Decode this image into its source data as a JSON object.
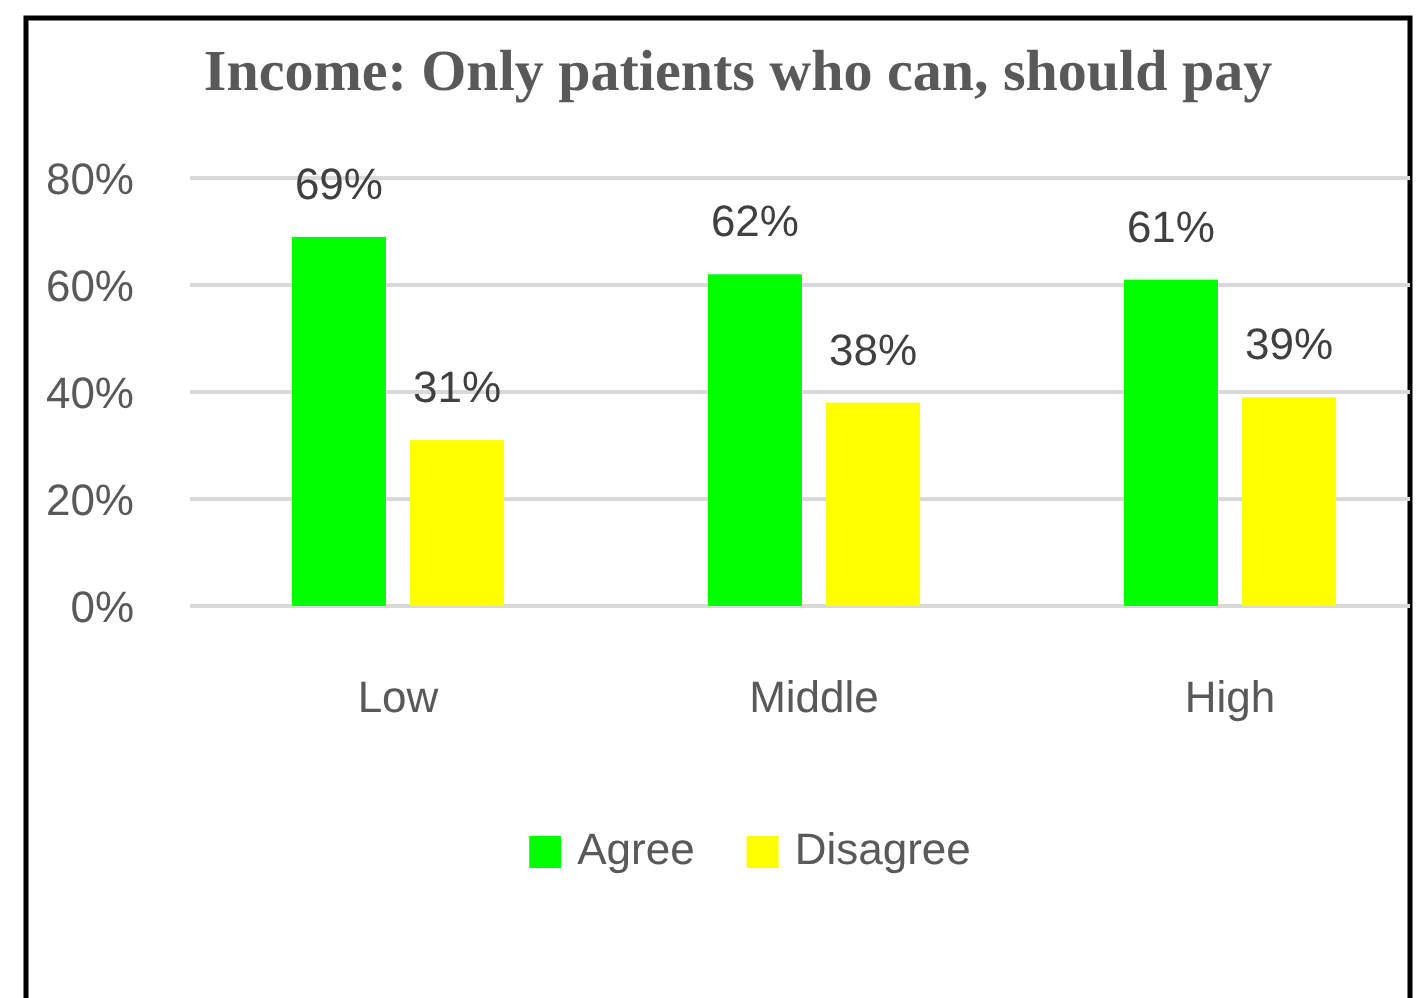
{
  "chart_data": {
    "type": "bar",
    "title": "Income: Only patients who can, should pay",
    "categories": [
      "Low",
      "Middle",
      "High"
    ],
    "series": [
      {
        "name": "Agree",
        "color": "#00ff00",
        "values": [
          69,
          62,
          61
        ],
        "value_labels": [
          "69%",
          "62%",
          "61%"
        ]
      },
      {
        "name": "Disagree",
        "color": "#ffff00",
        "values": [
          31,
          38,
          39
        ],
        "value_labels": [
          "31%",
          "38%",
          "39%"
        ]
      }
    ],
    "ylim": [
      0,
      80
    ],
    "yticks": [
      {
        "value": 0,
        "label": "0%"
      },
      {
        "value": 20,
        "label": "20%"
      },
      {
        "value": 40,
        "label": "40%"
      },
      {
        "value": 60,
        "label": "60%"
      },
      {
        "value": 80,
        "label": "80%"
      }
    ],
    "grid": "y",
    "legend": "bottom"
  }
}
